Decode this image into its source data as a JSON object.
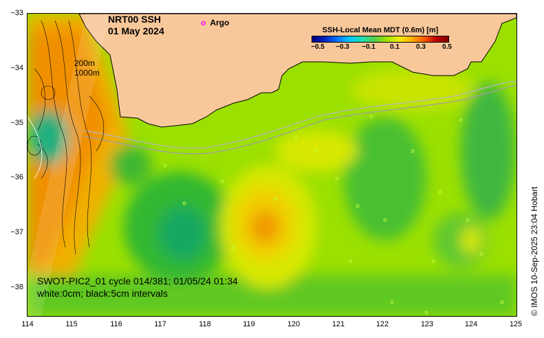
{
  "title": {
    "line1": "NRT00 SSH",
    "line2": "01 May 2024"
  },
  "argo_legend": {
    "marker": "o",
    "label": "Argo",
    "color": "#ff00ff"
  },
  "colorbar": {
    "title": "SSH-Local Mean MDT (0.6m) [m]",
    "ticks": [
      "−0.5",
      "−0.3",
      "−0.1",
      "0.1",
      "0.3",
      "0.5"
    ],
    "range": [
      -0.5,
      0.5
    ]
  },
  "depth_labels": {
    "shallow": "200m",
    "deep": "1000m"
  },
  "annotation": {
    "line1": "SWOT-PIC2_01 cycle 014/381; 01/05/24 01:34",
    "line2": "white:0cm; black:5cm intervals"
  },
  "credit": "© IMOS 10-Sep-2025 23:04 Hobart",
  "axes": {
    "y_ticks": [
      "−33",
      "−34",
      "−35",
      "−36",
      "−37",
      "−38"
    ],
    "x_ticks": [
      "114",
      "115",
      "116",
      "117",
      "118",
      "119",
      "120",
      "121",
      "122",
      "123",
      "124",
      "125"
    ],
    "lon_range": [
      114,
      125
    ],
    "lat_range": [
      -38.5,
      -33
    ]
  },
  "colors": {
    "land": "#f9c89a",
    "argo": "#ff00ff"
  }
}
